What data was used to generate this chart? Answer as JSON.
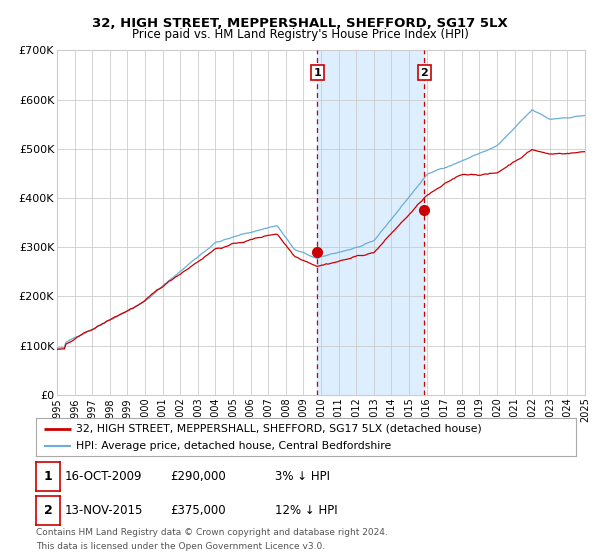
{
  "title": "32, HIGH STREET, MEPPERSHALL, SHEFFORD, SG17 5LX",
  "subtitle": "Price paid vs. HM Land Registry's House Price Index (HPI)",
  "legend_line1": "32, HIGH STREET, MEPPERSHALL, SHEFFORD, SG17 5LX (detached house)",
  "legend_line2": "HPI: Average price, detached house, Central Bedfordshire",
  "annotation1_label": "1",
  "annotation1_date": "16-OCT-2009",
  "annotation1_price": "£290,000",
  "annotation1_hpi": "3% ↓ HPI",
  "annotation1_year": 2009.79,
  "annotation1_value": 290000,
  "annotation2_label": "2",
  "annotation2_date": "13-NOV-2015",
  "annotation2_price": "£375,000",
  "annotation2_hpi": "12% ↓ HPI",
  "annotation2_year": 2015.87,
  "annotation2_value": 375000,
  "xmin": 1995,
  "xmax": 2025,
  "ymin": 0,
  "ymax": 700000,
  "yticks": [
    0,
    100000,
    200000,
    300000,
    400000,
    500000,
    600000,
    700000
  ],
  "ytick_labels": [
    "£0",
    "£100K",
    "£200K",
    "£300K",
    "£400K",
    "£500K",
    "£600K",
    "£700K"
  ],
  "hpi_color": "#6baed6",
  "price_color": "#cc0000",
  "shade_color": "#ddeeff",
  "grid_color": "#cccccc",
  "bg_color": "#ffffff",
  "footer_line1": "Contains HM Land Registry data © Crown copyright and database right 2024.",
  "footer_line2": "This data is licensed under the Open Government Licence v3.0."
}
